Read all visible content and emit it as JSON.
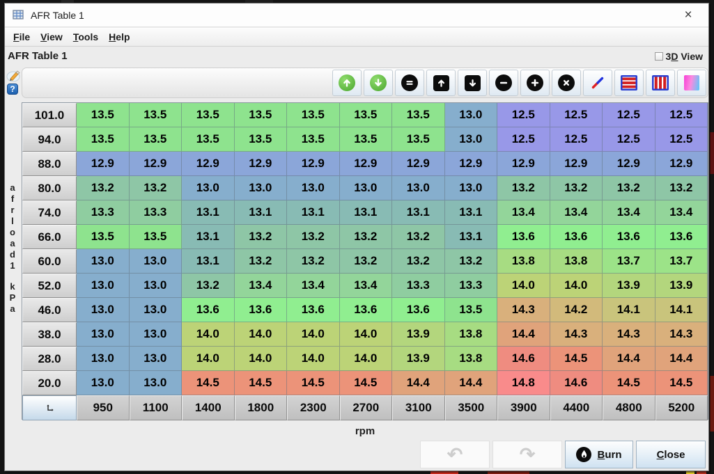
{
  "window": {
    "title": "AFR Table 1",
    "close_glyph": "×"
  },
  "menu": {
    "items": [
      {
        "label": "File",
        "underline": 0
      },
      {
        "label": "View",
        "underline": 0
      },
      {
        "label": "Tools",
        "underline": 0
      },
      {
        "label": "Help",
        "underline": 0
      }
    ]
  },
  "header": {
    "title": "AFR Table 1",
    "view3d": {
      "label": "3D View",
      "underline": 1,
      "checked": false
    }
  },
  "side_icons": [
    "edit-pencil-icon",
    "help-icon"
  ],
  "toolbar": {
    "icons": [
      "increase-green-up-icon",
      "decrease-green-down-icon",
      "set-equal-icon",
      "scale-up-icon",
      "scale-down-icon",
      "subtract-icon",
      "add-icon",
      "multiply-icon",
      "interpolate-icon",
      "interpolate-horizontal-icon",
      "interpolate-vertical-icon",
      "color-gradient-icon"
    ]
  },
  "table": {
    "y_axis_name": "afrload1",
    "y_axis_units": "kPa",
    "x_axis_label": "rpm",
    "y_values": [
      101.0,
      94.0,
      88.0,
      80.0,
      74.0,
      66.0,
      60.0,
      52.0,
      46.0,
      38.0,
      28.0,
      20.0
    ],
    "x_values": [
      950,
      1100,
      1400,
      1800,
      2300,
      2700,
      3100,
      3500,
      3900,
      4400,
      4800,
      5200
    ],
    "cells": [
      [
        13.5,
        13.5,
        13.5,
        13.5,
        13.5,
        13.5,
        13.5,
        13.0,
        12.5,
        12.5,
        12.5,
        12.5
      ],
      [
        13.5,
        13.5,
        13.5,
        13.5,
        13.5,
        13.5,
        13.5,
        13.0,
        12.5,
        12.5,
        12.5,
        12.5
      ],
      [
        12.9,
        12.9,
        12.9,
        12.9,
        12.9,
        12.9,
        12.9,
        12.9,
        12.9,
        12.9,
        12.9,
        12.9
      ],
      [
        13.2,
        13.2,
        13.0,
        13.0,
        13.0,
        13.0,
        13.0,
        13.0,
        13.2,
        13.2,
        13.2,
        13.2
      ],
      [
        13.3,
        13.3,
        13.1,
        13.1,
        13.1,
        13.1,
        13.1,
        13.1,
        13.4,
        13.4,
        13.4,
        13.4
      ],
      [
        13.5,
        13.5,
        13.1,
        13.2,
        13.2,
        13.2,
        13.2,
        13.1,
        13.6,
        13.6,
        13.6,
        13.6
      ],
      [
        13.0,
        13.0,
        13.1,
        13.2,
        13.2,
        13.2,
        13.2,
        13.2,
        13.8,
        13.8,
        13.7,
        13.7
      ],
      [
        13.0,
        13.0,
        13.2,
        13.4,
        13.4,
        13.4,
        13.3,
        13.3,
        14.0,
        14.0,
        13.9,
        13.9
      ],
      [
        13.0,
        13.0,
        13.6,
        13.6,
        13.6,
        13.6,
        13.6,
        13.5,
        14.3,
        14.2,
        14.1,
        14.1
      ],
      [
        13.0,
        13.0,
        14.0,
        14.0,
        14.0,
        14.0,
        13.9,
        13.8,
        14.4,
        14.3,
        14.3,
        14.3
      ],
      [
        13.0,
        13.0,
        14.0,
        14.0,
        14.0,
        14.0,
        13.9,
        13.8,
        14.6,
        14.5,
        14.4,
        14.4
      ],
      [
        13.0,
        13.0,
        14.5,
        14.5,
        14.5,
        14.5,
        14.4,
        14.4,
        14.8,
        14.6,
        14.5,
        14.5
      ]
    ],
    "colormap": [
      {
        "v": 12.5,
        "c": "#9898E8"
      },
      {
        "v": 12.9,
        "c": "#8BA6D9"
      },
      {
        "v": 13.0,
        "c": "#86AECD"
      },
      {
        "v": 13.1,
        "c": "#88BBB4"
      },
      {
        "v": 13.2,
        "c": "#8EC6A6"
      },
      {
        "v": 13.3,
        "c": "#8FCDA0"
      },
      {
        "v": 13.4,
        "c": "#93D59A"
      },
      {
        "v": 13.5,
        "c": "#8EE38E"
      },
      {
        "v": 13.6,
        "c": "#90EE90"
      },
      {
        "v": 13.7,
        "c": "#9CE388"
      },
      {
        "v": 13.8,
        "c": "#A7DC82"
      },
      {
        "v": 13.9,
        "c": "#B3D67D"
      },
      {
        "v": 14.0,
        "c": "#BCD377"
      },
      {
        "v": 14.1,
        "c": "#C9C47C"
      },
      {
        "v": 14.2,
        "c": "#D2BA7B"
      },
      {
        "v": 14.3,
        "c": "#D9B07C"
      },
      {
        "v": 14.4,
        "c": "#E0A37B"
      },
      {
        "v": 14.5,
        "c": "#EC9379"
      },
      {
        "v": 14.6,
        "c": "#EF8C80"
      },
      {
        "v": 14.8,
        "c": "#F98B8B"
      }
    ]
  },
  "footer": {
    "undo_icon": "undo-arrow-icon",
    "redo_icon": "redo-arrow-icon",
    "burn": {
      "label": "Burn",
      "underline": 0
    },
    "close": {
      "label": "Close",
      "underline": 0
    }
  }
}
